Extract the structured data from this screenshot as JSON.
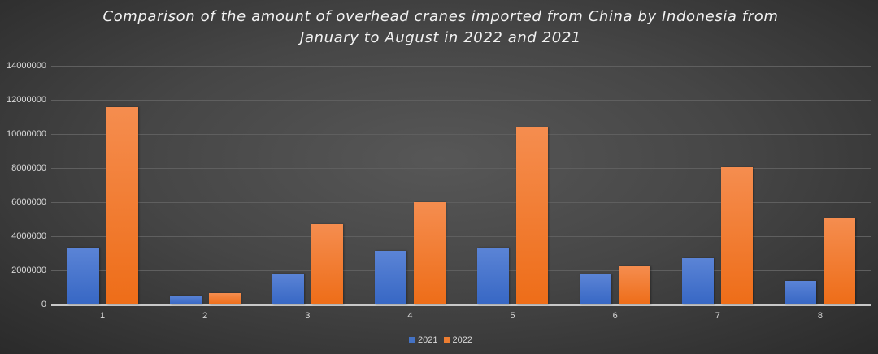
{
  "title": "Comparison of the amount of overhead cranes imported from China by Indonesia from January to August in 2022 and 2021",
  "title_lines": [
    "Comparison of the amount of overhead cranes imported from China by Indonesia from",
    "January to August in 2022 and 2021"
  ],
  "y_ticks": [
    "0",
    "2000000",
    "4000000",
    "6000000",
    "8000000",
    "10000000",
    "12000000",
    "14000000"
  ],
  "legend": [
    {
      "label": "2021",
      "color": "#4472c4"
    },
    {
      "label": "2022",
      "color": "#ed7d31"
    }
  ],
  "chart_data": {
    "type": "bar",
    "title": "Comparison of the amount of overhead cranes imported from China by Indonesia from January to August in 2022 and 2021",
    "xlabel": "",
    "ylabel": "",
    "categories": [
      "1",
      "2",
      "3",
      "4",
      "5",
      "6",
      "7",
      "8"
    ],
    "series": [
      {
        "name": "2021",
        "color": "#4472c4",
        "values": [
          3330000,
          520000,
          1810000,
          3140000,
          3330000,
          1760000,
          2710000,
          1380000
        ]
      },
      {
        "name": "2022",
        "color": "#ed7d31",
        "values": [
          11570000,
          670000,
          4710000,
          6000000,
          10380000,
          2240000,
          8050000,
          5050000
        ]
      }
    ],
    "ylim": [
      0,
      14000000
    ],
    "y_ticks": [
      0,
      2000000,
      4000000,
      6000000,
      8000000,
      10000000,
      12000000,
      14000000
    ],
    "grid": true,
    "legend_position": "bottom"
  }
}
